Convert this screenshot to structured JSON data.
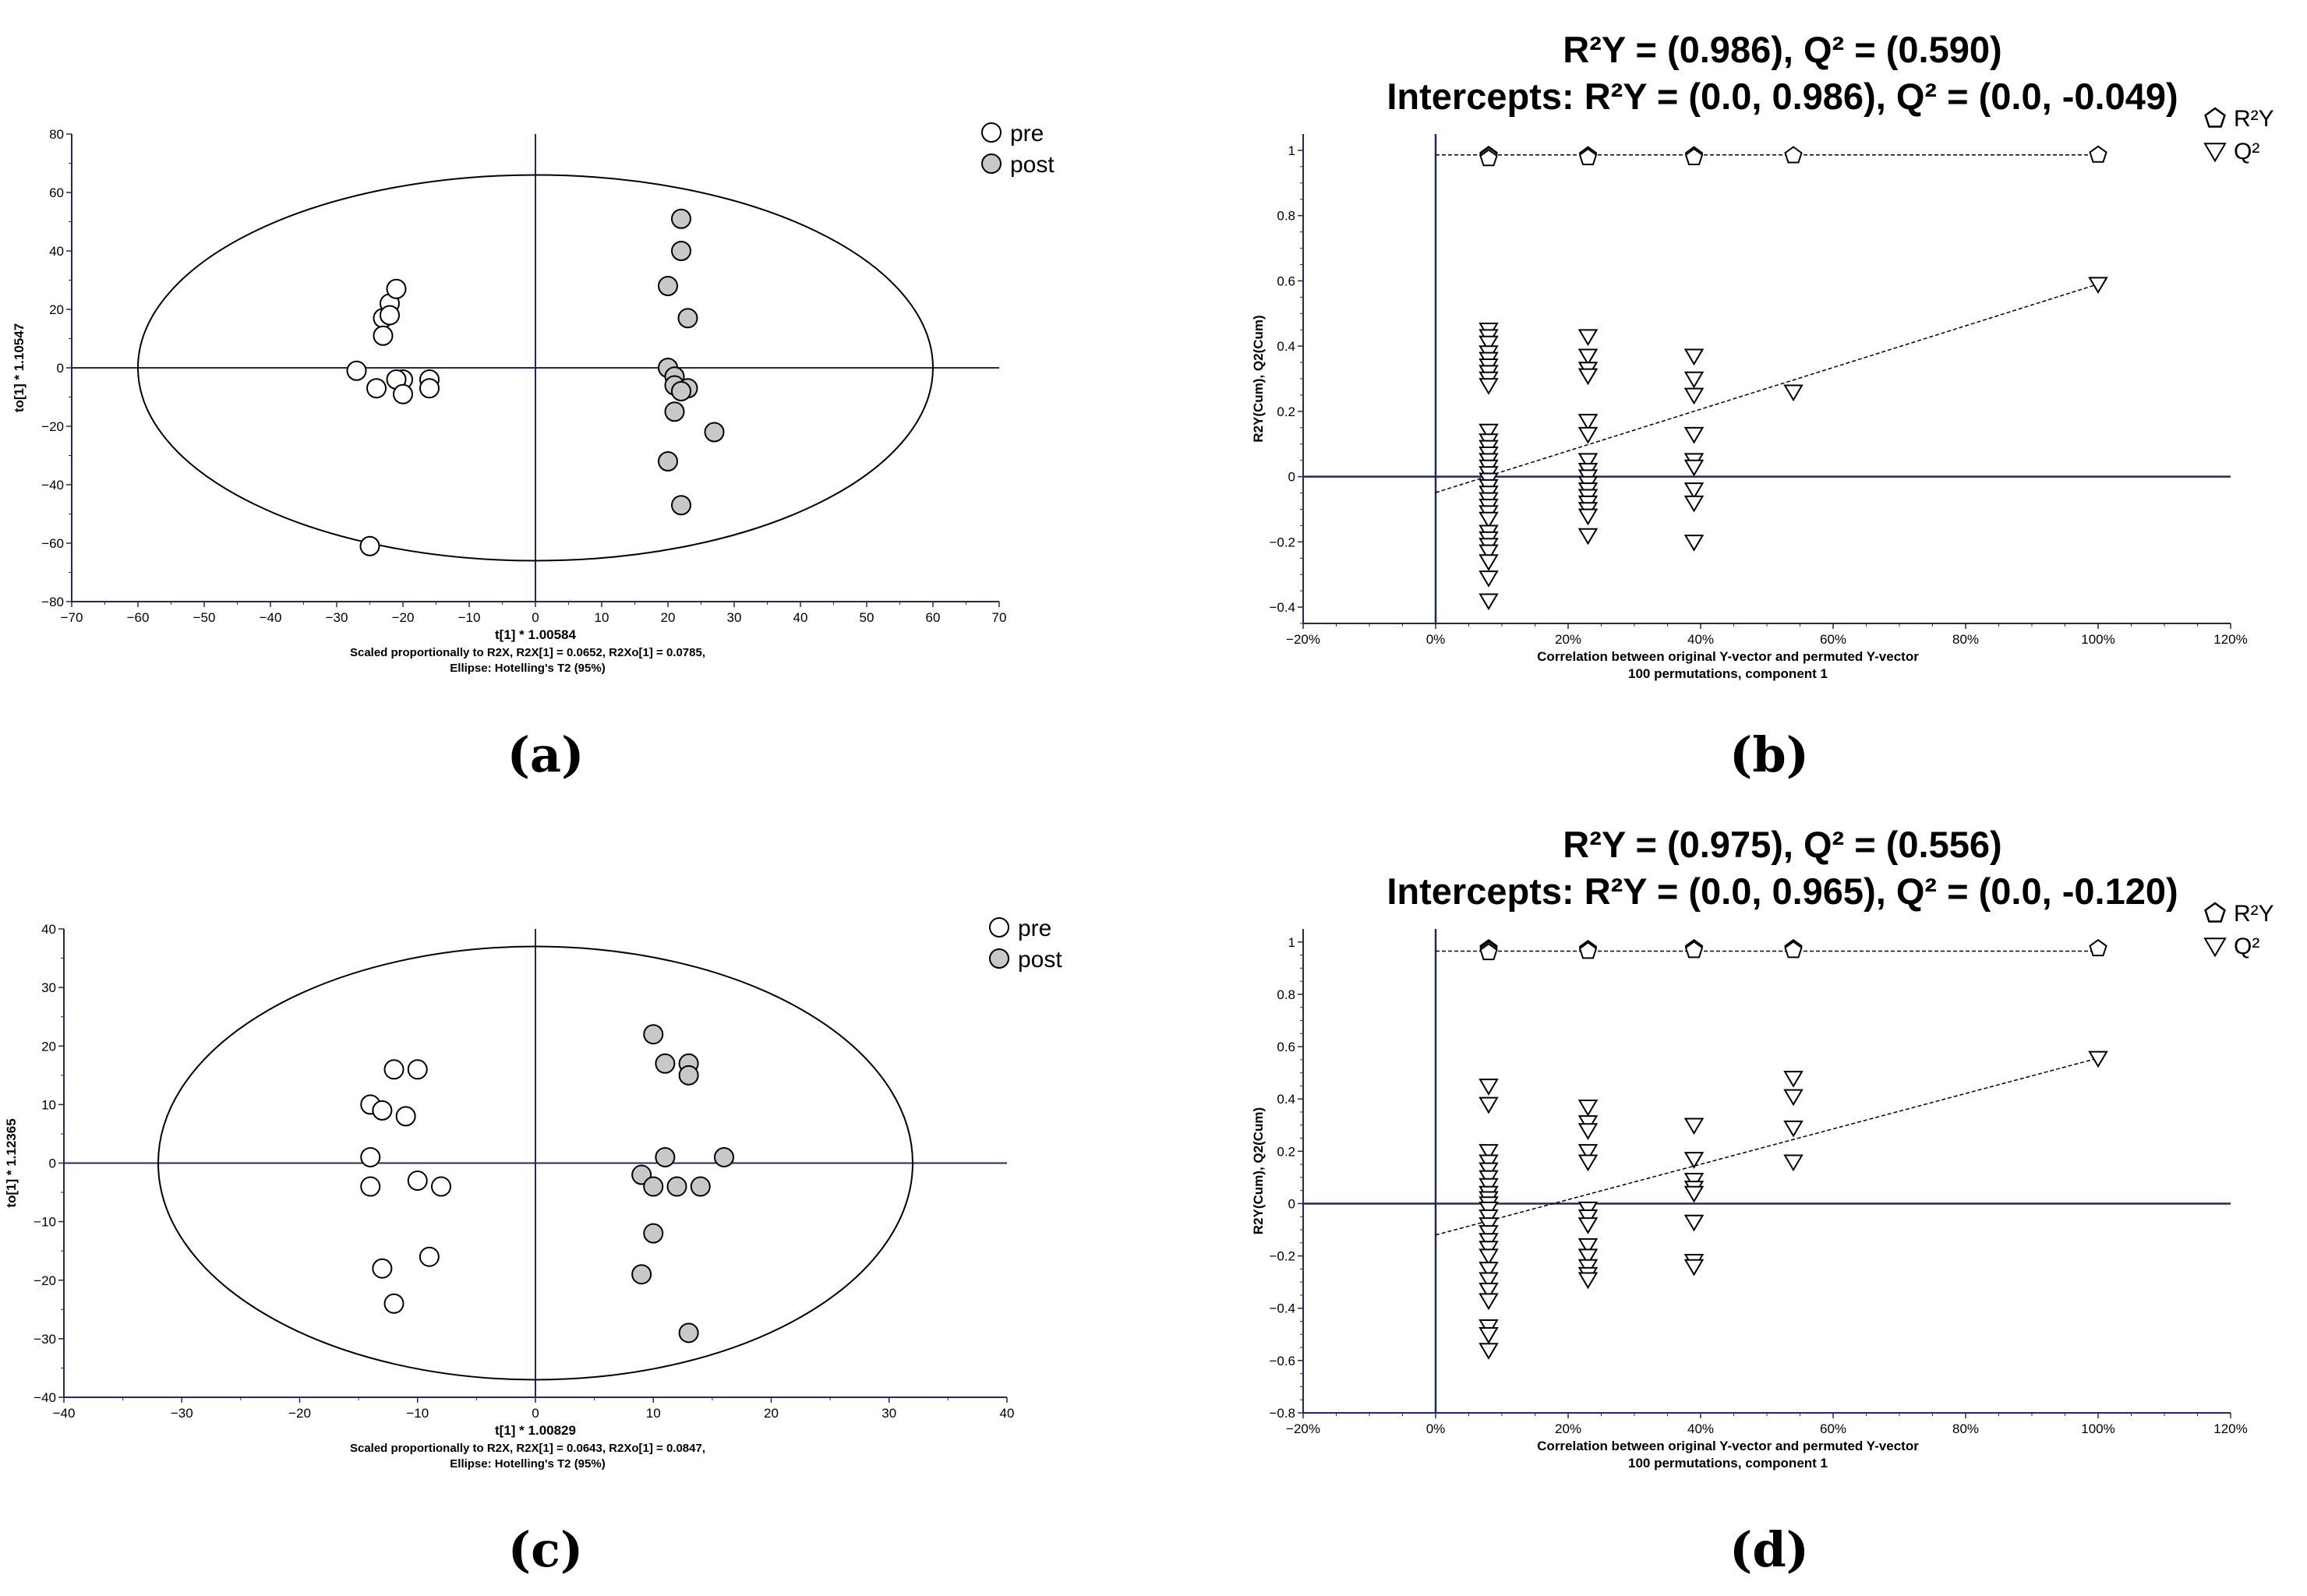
{
  "figure": {
    "panel_labels": [
      "(a)",
      "(b)",
      "(c)",
      "(d)"
    ]
  },
  "colors": {
    "pre": "#ffffff",
    "post": "#c8c8c8",
    "stroke": "#000000",
    "axis": "#1f2a5a"
  },
  "chart_data": [
    {
      "id": "a",
      "type": "scatter",
      "xlabel": "t[1] * 1.00584",
      "ylabel": "to[1] * 1.10547",
      "xlim": [
        -70,
        70
      ],
      "ylim": [
        -80,
        80
      ],
      "xticks": [
        -70,
        -60,
        -50,
        -40,
        -30,
        -20,
        -10,
        0,
        10,
        20,
        30,
        40,
        50,
        60,
        70
      ],
      "yticks": [
        -80,
        -60,
        -40,
        -20,
        0,
        20,
        40,
        60,
        80
      ],
      "footnote": [
        "Scaled proportionally to R2X, R2X[1] = 0.0652, R2Xo[1] = 0.0785,",
        "Ellipse: Hotelling's T2 (95%)"
      ],
      "legend": [
        "pre",
        "post"
      ],
      "ellipse": {
        "rx": 60,
        "ry": 66
      },
      "series": [
        {
          "name": "pre",
          "points": [
            [
              -22,
              22
            ],
            [
              -21,
              27
            ],
            [
              -23,
              17
            ],
            [
              -22,
              18
            ],
            [
              -23,
              11
            ],
            [
              -27,
              -1
            ],
            [
              -24,
              -7
            ],
            [
              -20,
              -4
            ],
            [
              -21,
              -4
            ],
            [
              -20,
              -9
            ],
            [
              -16,
              -4
            ],
            [
              -16,
              -7
            ],
            [
              -25,
              -61
            ]
          ]
        },
        {
          "name": "post",
          "points": [
            [
              22,
              51
            ],
            [
              22,
              40
            ],
            [
              20,
              28
            ],
            [
              23,
              17
            ],
            [
              20,
              0
            ],
            [
              21,
              -3
            ],
            [
              21,
              -6
            ],
            [
              23,
              -7
            ],
            [
              22,
              -8
            ],
            [
              21,
              -15
            ],
            [
              27,
              -22
            ],
            [
              20,
              -32
            ],
            [
              22,
              -47
            ]
          ]
        }
      ]
    },
    {
      "id": "b",
      "type": "scatter",
      "title": [
        "R²Y = (0.986), Q² = (0.590)",
        "Intercepts: R²Y = (0.0, 0.986), Q² = (0.0, -0.049)"
      ],
      "xlabel": [
        "Correlation between original Y-vector and permuted Y-vector",
        "100 permutations, component 1"
      ],
      "ylabel": "R2Y(Cum), Q2(Cum)",
      "xlim": [
        -0.2,
        1.2
      ],
      "ylim": [
        -0.45,
        1.05
      ],
      "xticks": [
        -0.2,
        0,
        0.2,
        0.4,
        0.6,
        0.8,
        1.0,
        1.2
      ],
      "xticklabels": [
        "-20%",
        "0%",
        "20%",
        "40%",
        "60%",
        "80%",
        "100%",
        "120%"
      ],
      "yticks": [
        -0.4,
        -0.2,
        0,
        0.2,
        0.4,
        0.6,
        0.8,
        1
      ],
      "legend": [
        "R²Y",
        "Q²"
      ],
      "r2y_line": [
        [
          0,
          0.986
        ],
        [
          1.0,
          0.986
        ]
      ],
      "q2_line": [
        [
          0,
          -0.049
        ],
        [
          1.0,
          0.59
        ]
      ],
      "series": [
        {
          "name": "R²Y",
          "points": [
            [
              0.08,
              0.985
            ],
            [
              0.08,
              0.982
            ],
            [
              0.08,
              0.975
            ],
            [
              0.23,
              0.984
            ],
            [
              0.23,
              0.978
            ],
            [
              0.39,
              0.984
            ],
            [
              0.39,
              0.978
            ],
            [
              0.54,
              0.984
            ],
            [
              1.0,
              0.986
            ]
          ]
        },
        {
          "name": "Q²",
          "points": [
            [
              0.08,
              0.45
            ],
            [
              0.08,
              0.43
            ],
            [
              0.08,
              0.41
            ],
            [
              0.08,
              0.38
            ],
            [
              0.08,
              0.36
            ],
            [
              0.08,
              0.34
            ],
            [
              0.08,
              0.32
            ],
            [
              0.08,
              0.3
            ],
            [
              0.08,
              0.28
            ],
            [
              0.08,
              0.14
            ],
            [
              0.08,
              0.11
            ],
            [
              0.08,
              0.09
            ],
            [
              0.08,
              0.07
            ],
            [
              0.08,
              0.05
            ],
            [
              0.08,
              0.03
            ],
            [
              0.08,
              0.01
            ],
            [
              0.08,
              -0.01
            ],
            [
              0.08,
              -0.03
            ],
            [
              0.08,
              -0.05
            ],
            [
              0.08,
              -0.07
            ],
            [
              0.08,
              -0.09
            ],
            [
              0.08,
              -0.11
            ],
            [
              0.08,
              -0.13
            ],
            [
              0.08,
              -0.17
            ],
            [
              0.08,
              -0.19
            ],
            [
              0.08,
              -0.21
            ],
            [
              0.08,
              -0.23
            ],
            [
              0.08,
              -0.26
            ],
            [
              0.08,
              -0.31
            ],
            [
              0.08,
              -0.38
            ],
            [
              0.23,
              0.43
            ],
            [
              0.23,
              0.37
            ],
            [
              0.23,
              0.33
            ],
            [
              0.23,
              0.31
            ],
            [
              0.23,
              0.17
            ],
            [
              0.23,
              0.13
            ],
            [
              0.23,
              0.05
            ],
            [
              0.23,
              0.02
            ],
            [
              0.23,
              0.0
            ],
            [
              0.23,
              -0.02
            ],
            [
              0.23,
              -0.04
            ],
            [
              0.23,
              -0.06
            ],
            [
              0.23,
              -0.08
            ],
            [
              0.23,
              -0.1
            ],
            [
              0.23,
              -0.12
            ],
            [
              0.23,
              -0.18
            ],
            [
              0.39,
              0.37
            ],
            [
              0.39,
              0.3
            ],
            [
              0.39,
              0.25
            ],
            [
              0.39,
              0.13
            ],
            [
              0.39,
              0.05
            ],
            [
              0.39,
              0.03
            ],
            [
              0.39,
              -0.04
            ],
            [
              0.39,
              -0.08
            ],
            [
              0.39,
              -0.2
            ],
            [
              0.54,
              0.26
            ],
            [
              1.0,
              0.59
            ]
          ]
        }
      ]
    },
    {
      "id": "c",
      "type": "scatter",
      "xlabel": "t[1] * 1.00829",
      "ylabel": "to[1] * 1.12365",
      "xlim": [
        -40,
        40
      ],
      "ylim": [
        -40,
        40
      ],
      "xticks": [
        -40,
        -30,
        -20,
        -10,
        0,
        10,
        20,
        30,
        40
      ],
      "yticks": [
        -40,
        -30,
        -20,
        -10,
        0,
        10,
        20,
        30,
        40
      ],
      "footnote": [
        "Scaled proportionally to R2X, R2X[1] = 0.0643, R2Xo[1] = 0.0847,",
        "Ellipse: Hotelling's T2 (95%)"
      ],
      "legend": [
        "pre",
        "post"
      ],
      "ellipse": {
        "rx": 32,
        "ry": 37
      },
      "series": [
        {
          "name": "pre",
          "points": [
            [
              -12,
              16
            ],
            [
              -10,
              16
            ],
            [
              -14,
              10
            ],
            [
              -13,
              9
            ],
            [
              -11,
              8
            ],
            [
              -14,
              1
            ],
            [
              -14,
              -4
            ],
            [
              -10,
              -3
            ],
            [
              -8,
              -4
            ],
            [
              -13,
              -18
            ],
            [
              -9,
              -16
            ],
            [
              -12,
              -24
            ]
          ]
        },
        {
          "name": "post",
          "points": [
            [
              10,
              22
            ],
            [
              11,
              17
            ],
            [
              13,
              17
            ],
            [
              13,
              15
            ],
            [
              11,
              1
            ],
            [
              16,
              1
            ],
            [
              9,
              -2
            ],
            [
              10,
              -4
            ],
            [
              12,
              -4
            ],
            [
              14,
              -4
            ],
            [
              10,
              -12
            ],
            [
              9,
              -19
            ],
            [
              13,
              -29
            ]
          ]
        }
      ]
    },
    {
      "id": "d",
      "type": "scatter",
      "title": [
        "R²Y = (0.975), Q² = (0.556)",
        "Intercepts: R²Y = (0.0, 0.965), Q² = (0.0, -0.120)"
      ],
      "xlabel": [
        "Correlation between original Y-vector and permuted Y-vector",
        "100 permutations, component 1"
      ],
      "ylabel": "R2Y(Cum), Q2(Cum)",
      "xlim": [
        -0.2,
        1.2
      ],
      "ylim": [
        -0.8,
        1.05
      ],
      "xticks": [
        -0.2,
        0,
        0.2,
        0.4,
        0.6,
        0.8,
        1.0,
        1.2
      ],
      "xticklabels": [
        "-20%",
        "0%",
        "20%",
        "40%",
        "60%",
        "80%",
        "100%",
        "120%"
      ],
      "yticks": [
        -0.8,
        -0.6,
        -0.4,
        -0.2,
        0,
        0.2,
        0.4,
        0.6,
        0.8,
        1
      ],
      "legend": [
        "R²Y",
        "Q²"
      ],
      "r2y_line": [
        [
          0,
          0.965
        ],
        [
          1.0,
          0.965
        ]
      ],
      "q2_line": [
        [
          0,
          -0.12
        ],
        [
          1.0,
          0.556
        ]
      ],
      "series": [
        {
          "name": "R²Y",
          "points": [
            [
              0.08,
              0.975
            ],
            [
              0.08,
              0.968
            ],
            [
              0.08,
              0.96
            ],
            [
              0.23,
              0.972
            ],
            [
              0.23,
              0.965
            ],
            [
              0.39,
              0.975
            ],
            [
              0.39,
              0.968
            ],
            [
              0.54,
              0.975
            ],
            [
              0.54,
              0.968
            ],
            [
              1.0,
              0.975
            ]
          ]
        },
        {
          "name": "Q²",
          "points": [
            [
              0.08,
              0.45
            ],
            [
              0.08,
              0.38
            ],
            [
              0.08,
              0.2
            ],
            [
              0.08,
              0.16
            ],
            [
              0.08,
              0.13
            ],
            [
              0.08,
              0.1
            ],
            [
              0.08,
              0.07
            ],
            [
              0.08,
              0.04
            ],
            [
              0.08,
              0.02
            ],
            [
              0.08,
              0.0
            ],
            [
              0.08,
              -0.02
            ],
            [
              0.08,
              -0.05
            ],
            [
              0.08,
              -0.08
            ],
            [
              0.08,
              -0.11
            ],
            [
              0.08,
              -0.14
            ],
            [
              0.08,
              -0.17
            ],
            [
              0.08,
              -0.2
            ],
            [
              0.08,
              -0.25
            ],
            [
              0.08,
              -0.29
            ],
            [
              0.08,
              -0.33
            ],
            [
              0.08,
              -0.37
            ],
            [
              0.08,
              -0.47
            ],
            [
              0.08,
              -0.5
            ],
            [
              0.08,
              -0.56
            ],
            [
              0.23,
              0.37
            ],
            [
              0.23,
              0.31
            ],
            [
              0.23,
              0.28
            ],
            [
              0.23,
              0.2
            ],
            [
              0.23,
              0.16
            ],
            [
              0.23,
              -0.02
            ],
            [
              0.23,
              -0.05
            ],
            [
              0.23,
              -0.08
            ],
            [
              0.23,
              -0.16
            ],
            [
              0.23,
              -0.2
            ],
            [
              0.23,
              -0.24
            ],
            [
              0.23,
              -0.27
            ],
            [
              0.23,
              -0.29
            ],
            [
              0.39,
              0.3
            ],
            [
              0.39,
              0.17
            ],
            [
              0.39,
              0.09
            ],
            [
              0.39,
              0.06
            ],
            [
              0.39,
              0.04
            ],
            [
              0.39,
              -0.07
            ],
            [
              0.39,
              -0.22
            ],
            [
              0.39,
              -0.24
            ],
            [
              0.54,
              0.48
            ],
            [
              0.54,
              0.41
            ],
            [
              0.54,
              0.29
            ],
            [
              0.54,
              0.16
            ],
            [
              1.0,
              0.556
            ]
          ]
        }
      ]
    }
  ]
}
